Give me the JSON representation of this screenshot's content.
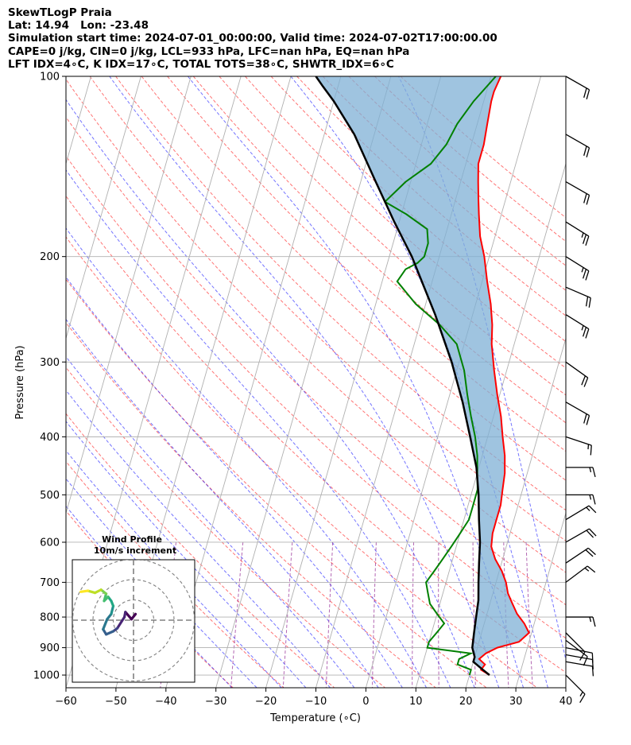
{
  "header": {
    "line1": "SkewTLogP Praia",
    "line2": "Lat: 14.94   Lon: -23.48",
    "line3": "Simulation start time: 2024-07-01_00:00:00, Valid time: 2024-07-02T17:00:00.00",
    "line4": "CAPE=0 j/kg, CIN=0 j/kg, LCL=933 hPa, LFC=nan hPa, EQ=nan hPa",
    "line5": "LFT IDX=4∘C, K IDX=17∘C, TOTAL TOTS=38∘C, SHWTR_IDX=6∘C"
  },
  "chart_data": [
    {
      "type": "line",
      "subtype": "skew-T log-P diagram",
      "xlabel": "Temperature (∘C)",
      "ylabel": "Pressure (hPa)",
      "xlim": [
        -60,
        40
      ],
      "ylim": [
        1050,
        100
      ],
      "y_scale": "log",
      "x_ticks": [
        -60,
        -50,
        -40,
        -30,
        -20,
        -10,
        0,
        10,
        20,
        30,
        40
      ],
      "x_tick_labels": [
        "−60",
        "−50",
        "−40",
        "−30",
        "−20",
        "−10",
        "0",
        "10",
        "20",
        "30",
        "40"
      ],
      "y_ticks": [
        100,
        200,
        300,
        400,
        500,
        600,
        700,
        800,
        900,
        1000
      ],
      "y_tick_labels": [
        "100",
        "200",
        "300",
        "400",
        "500",
        "600",
        "700",
        "800",
        "900",
        "1000"
      ],
      "grid": true,
      "series": [
        {
          "role": "temperature",
          "color": "#ff0000",
          "points": [
            [
              24,
              1000
            ],
            [
              22,
              980
            ],
            [
              22.5,
              960
            ],
            [
              21,
              940
            ],
            [
              22,
              920
            ],
            [
              24,
              900
            ],
            [
              28,
              880
            ],
            [
              29.5,
              850
            ],
            [
              28,
              820
            ],
            [
              26,
              790
            ],
            [
              24.5,
              760
            ],
            [
              23,
              730
            ],
            [
              22,
              700
            ],
            [
              20.5,
              670
            ],
            [
              18.5,
              640
            ],
            [
              17,
              610
            ],
            [
              16.5,
              580
            ],
            [
              16.5,
              550
            ],
            [
              16.5,
              520
            ],
            [
              16,
              490
            ],
            [
              15.5,
              460
            ],
            [
              14.5,
              430
            ],
            [
              13,
              400
            ],
            [
              11.5,
              370
            ],
            [
              9.5,
              340
            ],
            [
              7.5,
              310
            ],
            [
              5.5,
              280
            ],
            [
              4.5,
              260
            ],
            [
              3,
              240
            ],
            [
              1,
              220
            ],
            [
              -1,
              200
            ],
            [
              -3,
              185
            ],
            [
              -4.5,
              170
            ],
            [
              -5.5,
              160
            ],
            [
              -6.5,
              150
            ],
            [
              -7.5,
              140
            ],
            [
              -7.5,
              130
            ],
            [
              -8,
              120
            ],
            [
              -8.5,
              110
            ],
            [
              -8.5,
              106
            ],
            [
              -8,
              100
            ]
          ]
        },
        {
          "role": "dewpoint",
          "color": "#008000",
          "points": [
            [
              20,
              1000
            ],
            [
              20,
              980
            ],
            [
              17,
              960
            ],
            [
              17,
              940
            ],
            [
              19,
              920
            ],
            [
              10,
              900
            ],
            [
              10,
              880
            ],
            [
              11,
              850
            ],
            [
              12,
              820
            ],
            [
              10,
              790
            ],
            [
              8,
              760
            ],
            [
              7,
              730
            ],
            [
              6,
              700
            ],
            [
              7,
              670
            ],
            [
              8,
              640
            ],
            [
              9,
              610
            ],
            [
              10,
              580
            ],
            [
              11,
              550
            ],
            [
              11,
              520
            ],
            [
              11,
              490
            ],
            [
              10,
              460
            ],
            [
              9,
              430
            ],
            [
              7.5,
              400
            ],
            [
              5.5,
              370
            ],
            [
              3.5,
              340
            ],
            [
              1.5,
              310
            ],
            [
              -1.5,
              280
            ],
            [
              -6,
              260
            ],
            [
              -12,
              240
            ],
            [
              -17,
              220
            ],
            [
              -16,
              210
            ],
            [
              -14,
              205
            ],
            [
              -13,
              200
            ],
            [
              -13,
              190
            ],
            [
              -14,
              180
            ],
            [
              -19,
              170
            ],
            [
              -24,
              162
            ],
            [
              -21,
              150
            ],
            [
              -17,
              140
            ],
            [
              -15,
              130
            ],
            [
              -14,
              120
            ],
            [
              -12,
              110
            ],
            [
              -9,
              100
            ]
          ]
        },
        {
          "role": "parcel profile",
          "color": "#000000",
          "points": [
            [
              24,
              1000
            ],
            [
              22,
              975
            ],
            [
              20,
              950
            ],
            [
              20,
              933
            ],
            [
              19,
              900
            ],
            [
              18.5,
              850
            ],
            [
              18,
              800
            ],
            [
              17.5,
              750
            ],
            [
              16.5,
              700
            ],
            [
              15.5,
              650
            ],
            [
              14.5,
              600
            ],
            [
              13,
              550
            ],
            [
              11.5,
              500
            ],
            [
              9.5,
              450
            ],
            [
              6.5,
              400
            ],
            [
              3,
              350
            ],
            [
              -1.5,
              300
            ],
            [
              -7.5,
              250
            ],
            [
              -15.5,
              200
            ],
            [
              -21,
              175
            ],
            [
              -27,
              150
            ],
            [
              -34,
              125
            ],
            [
              -40,
              110
            ],
            [
              -43,
              104
            ],
            [
              -45,
              100
            ]
          ]
        },
        {
          "role": "dry adiabats",
          "color": "#ff0000",
          "style": "dashed"
        },
        {
          "role": "moist adiabats",
          "color": "#0000ff",
          "style": "dashed"
        },
        {
          "role": "mixing ratio lines",
          "color": "#800080",
          "style": "dashed"
        },
        {
          "role": "CAPE/CIN shading",
          "color": "#7fb0d5"
        }
      ]
    },
    {
      "type": "line",
      "subtype": "hodograph",
      "title": "Wind Profile",
      "subtitle": "10m/s increment",
      "colormap": "viridis",
      "points": [
        [
          0.1,
          0.3
        ],
        [
          -0.1,
          0.05
        ],
        [
          -0.4,
          0.4
        ],
        [
          -0.45,
          0.15
        ],
        [
          -0.8,
          -0.4
        ],
        [
          -1.0,
          -0.55
        ],
        [
          -1.35,
          -0.7
        ],
        [
          -1.5,
          -0.45
        ],
        [
          -1.3,
          0.05
        ],
        [
          -1.1,
          0.3
        ],
        [
          -1.0,
          0.7
        ],
        [
          -1.1,
          0.95
        ],
        [
          -1.25,
          1.15
        ],
        [
          -1.45,
          0.95
        ],
        [
          -1.35,
          1.3
        ],
        [
          -1.6,
          1.5
        ],
        [
          -1.9,
          1.35
        ],
        [
          -2.25,
          1.45
        ],
        [
          -2.6,
          1.4
        ]
      ]
    }
  ],
  "wind_barbs": [
    {
      "p": 1000,
      "u": -10.0,
      "v": 10.0
    },
    {
      "p": 950,
      "u": -8.7,
      "v": 1.5
    },
    {
      "p": 925,
      "u": -8.5,
      "v": 1.5
    },
    {
      "p": 900,
      "u": -10.0,
      "v": 2.0
    },
    {
      "p": 875,
      "u": -8.0,
      "v": 6.0
    },
    {
      "p": 850,
      "u": -8.0,
      "v": 8.0
    },
    {
      "p": 800,
      "u": -15.0,
      "v": 0.0
    },
    {
      "p": 700,
      "u": -10.0,
      "v": -7.5
    },
    {
      "p": 650,
      "u": -15.0,
      "v": -10.0
    },
    {
      "p": 600,
      "u": -17.5,
      "v": -10.0
    },
    {
      "p": 550,
      "u": -12.5,
      "v": -7.5
    },
    {
      "p": 500,
      "u": -15.0,
      "v": 0.0
    },
    {
      "p": 450,
      "u": -15.0,
      "v": 0.0
    },
    {
      "p": 400,
      "u": -15.0,
      "v": 5.0
    },
    {
      "p": 350,
      "u": -17.5,
      "v": 10.0
    },
    {
      "p": 300,
      "u": -17.5,
      "v": 12.5
    },
    {
      "p": 250,
      "u": -20.0,
      "v": 12.5
    },
    {
      "p": 225,
      "u": -17.5,
      "v": 7.5
    },
    {
      "p": 200,
      "u": -20.0,
      "v": 12.5
    },
    {
      "p": 175,
      "u": -20.0,
      "v": 12.5
    },
    {
      "p": 150,
      "u": -17.5,
      "v": 10.0
    },
    {
      "p": 125,
      "u": -17.5,
      "v": 10.0
    },
    {
      "p": 100,
      "u": -17.5,
      "v": 10.0
    }
  ]
}
